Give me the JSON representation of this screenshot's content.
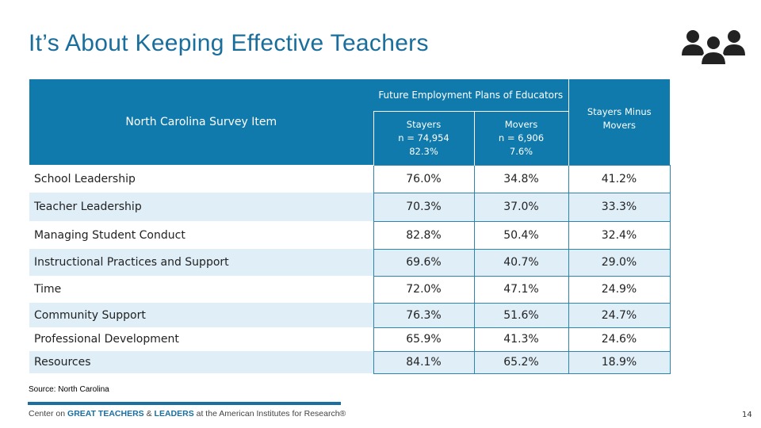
{
  "header": {
    "title": "It’s About Keeping Effective Teachers"
  },
  "table": {
    "group_header": "Future Employment Plans of Educators",
    "item_header": "North Carolina Survey Item",
    "columns": [
      {
        "lines": [
          "Stayers",
          "n = 74,954",
          "82.3%"
        ]
      },
      {
        "lines": [
          "Movers",
          "n = 6,906",
          "7.6%"
        ]
      },
      {
        "lines": [
          "Stayers Minus",
          "Movers"
        ]
      }
    ],
    "rows": [
      [
        "School Leadership",
        "76.0%",
        "34.8%",
        "41.2%"
      ],
      [
        "Teacher Leadership",
        "70.3%",
        "37.0%",
        "33.3%"
      ],
      [
        "Managing Student Conduct",
        "82.8%",
        "50.4%",
        "32.4%"
      ],
      [
        "Instructional Practices and Support",
        "69.6%",
        "40.7%",
        "29.0%"
      ],
      [
        "Time",
        "72.0%",
        "47.1%",
        "24.9%"
      ],
      [
        "Community Support",
        "76.3%",
        "51.6%",
        "24.7%"
      ],
      [
        "Professional Development",
        "65.9%",
        "41.3%",
        "24.6%"
      ],
      [
        "Resources",
        "84.1%",
        "65.2%",
        "18.9%"
      ]
    ]
  },
  "source": "Source: North Carolina",
  "footer": {
    "parts": [
      "Center on ",
      "GREAT TEACHERS",
      " & ",
      "LEADERS",
      " at the American Institutes for Research®"
    ]
  },
  "page_number": "14"
}
